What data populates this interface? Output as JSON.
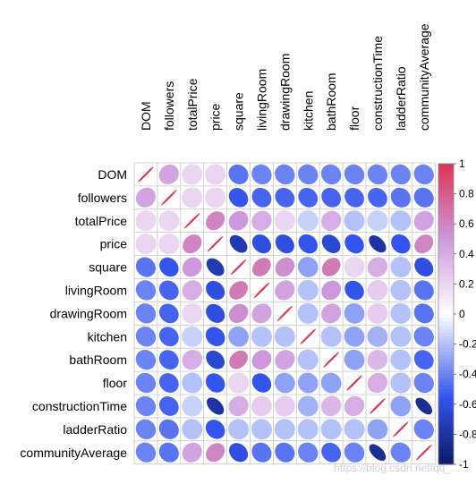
{
  "chart_data": {
    "type": "heatmap",
    "subtype": "correlation-matrix-ellipse",
    "title": "",
    "variables": [
      "DOM",
      "followers",
      "totalPrice",
      "price",
      "square",
      "livingRoom",
      "drawingRoom",
      "kitchen",
      "bathRoom",
      "floor",
      "constructionTime",
      "ladderRatio",
      "communityAverage"
    ],
    "matrix": [
      [
        1.0,
        0.45,
        0.2,
        0.2,
        -0.45,
        -0.4,
        -0.4,
        -0.4,
        -0.4,
        -0.4,
        -0.4,
        -0.4,
        -0.4
      ],
      [
        0.45,
        1.0,
        0.2,
        0.2,
        -0.55,
        -0.5,
        -0.5,
        -0.5,
        -0.5,
        -0.5,
        -0.5,
        -0.45,
        -0.45
      ],
      [
        0.2,
        0.2,
        1.0,
        0.6,
        0.5,
        0.4,
        0.2,
        -0.15,
        0.4,
        -0.2,
        -0.15,
        -0.2,
        0.45
      ],
      [
        0.2,
        0.2,
        0.6,
        1.0,
        -0.75,
        -0.6,
        -0.6,
        -0.55,
        -0.65,
        -0.55,
        -0.8,
        -0.55,
        0.6
      ],
      [
        -0.45,
        -0.55,
        0.5,
        -0.75,
        1.0,
        0.65,
        0.55,
        -0.3,
        0.65,
        0.2,
        0.4,
        -0.2,
        -0.6
      ],
      [
        -0.4,
        -0.5,
        0.4,
        -0.6,
        0.65,
        1.0,
        0.45,
        -0.2,
        0.5,
        -0.55,
        0.25,
        -0.2,
        -0.45
      ],
      [
        -0.4,
        -0.5,
        0.2,
        -0.6,
        0.55,
        0.45,
        1.0,
        -0.2,
        0.45,
        -0.3,
        0.25,
        -0.2,
        -0.45
      ],
      [
        -0.4,
        -0.5,
        -0.15,
        -0.55,
        -0.3,
        -0.2,
        -0.2,
        1.0,
        -0.2,
        -0.3,
        -0.25,
        -0.2,
        -0.4
      ],
      [
        -0.4,
        -0.5,
        0.4,
        -0.65,
        0.65,
        0.5,
        0.45,
        -0.2,
        1.0,
        -0.3,
        0.35,
        -0.2,
        -0.5
      ],
      [
        -0.4,
        -0.5,
        -0.2,
        -0.55,
        0.2,
        -0.55,
        -0.3,
        -0.3,
        -0.3,
        1.0,
        0.4,
        -0.2,
        -0.4
      ],
      [
        -0.4,
        -0.5,
        -0.15,
        -0.8,
        0.4,
        0.25,
        0.25,
        -0.25,
        0.35,
        0.4,
        1.0,
        -0.3,
        -0.85
      ],
      [
        -0.4,
        -0.45,
        -0.2,
        -0.55,
        -0.2,
        -0.2,
        -0.2,
        -0.2,
        -0.2,
        -0.2,
        -0.3,
        1.0,
        -0.4
      ],
      [
        -0.4,
        -0.45,
        0.45,
        0.6,
        -0.6,
        -0.45,
        -0.45,
        -0.4,
        -0.5,
        -0.4,
        -0.85,
        -0.4,
        1.0
      ]
    ],
    "colorbar": {
      "range": [
        -1,
        1
      ],
      "ticks": [
        "1",
        "0.8",
        "0.6",
        "0.4",
        "0.2",
        "0",
        "-0.2",
        "-0.4",
        "-0.6",
        "-0.8",
        "-1"
      ],
      "colors": {
        "negative_end": "#0d1a66",
        "negative_mid": "#3355ee",
        "neutral": "#ffffff",
        "positive_mid": "#cc99dd",
        "positive_end": "#dd3355"
      }
    },
    "grid": true,
    "legend": "right"
  },
  "watermark": "https://blog.csdn.net/qq_..."
}
